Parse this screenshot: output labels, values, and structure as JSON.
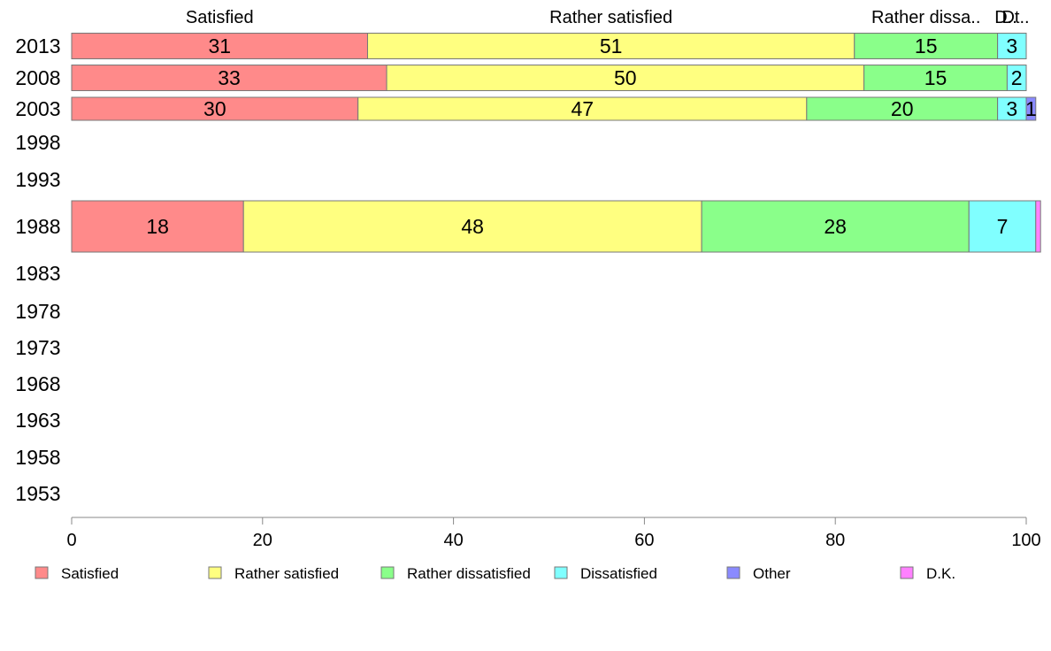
{
  "chart_data": {
    "type": "bar",
    "orientation": "horizontal",
    "stacked": true,
    "title": "",
    "xlabel": "",
    "ylabel": "",
    "xlim": [
      0,
      100
    ],
    "x_ticks": [
      "0",
      "20",
      "40",
      "60",
      "80",
      "100"
    ],
    "categories": [
      "2013",
      "2008",
      "2003",
      "1998",
      "1993",
      "1988",
      "1983",
      "1978",
      "1973",
      "1968",
      "1963",
      "1958",
      "1953"
    ],
    "series": [
      {
        "name": "Satisfied",
        "color": "#FF8A8A",
        "values": [
          31,
          33,
          30,
          null,
          null,
          18,
          null,
          null,
          null,
          null,
          null,
          null,
          null
        ]
      },
      {
        "name": "Rather satisfied",
        "color": "#FFFF80",
        "values": [
          51,
          50,
          47,
          null,
          null,
          48,
          null,
          null,
          null,
          null,
          null,
          null,
          null
        ]
      },
      {
        "name": "Rather dissatisfied",
        "color": "#8AFF8A",
        "values": [
          15,
          15,
          20,
          null,
          null,
          28,
          null,
          null,
          null,
          null,
          null,
          null,
          null
        ]
      },
      {
        "name": "Dissatisfied",
        "color": "#80FFFF",
        "values": [
          3,
          2,
          3,
          null,
          null,
          7,
          null,
          null,
          null,
          null,
          null,
          null,
          null
        ]
      },
      {
        "name": "Other",
        "color": "#8A8AFF",
        "values": [
          0,
          0,
          1,
          null,
          null,
          0,
          null,
          null,
          null,
          null,
          null,
          null,
          null
        ]
      },
      {
        "name": "D.K.",
        "color": "#FF80FF",
        "values": [
          0,
          0,
          0,
          null,
          null,
          0.5,
          null,
          null,
          null,
          null,
          null,
          null,
          null
        ]
      }
    ],
    "segment_labels": [
      [
        "31",
        "51",
        "15",
        "3",
        "",
        ""
      ],
      [
        "33",
        "50",
        "15",
        "2",
        "",
        ""
      ],
      [
        "30",
        "47",
        "20",
        "3",
        "1",
        ""
      ],
      [],
      [],
      [
        "18",
        "48",
        "28",
        "7",
        "",
        ""
      ],
      [],
      [],
      [],
      [],
      [],
      [],
      []
    ],
    "top_labels": [
      "Satisfied",
      "Rather satisfied",
      "Rather dissa..",
      "D..",
      "Dt..",
      ""
    ],
    "legend_position": "bottom",
    "grid": false
  }
}
